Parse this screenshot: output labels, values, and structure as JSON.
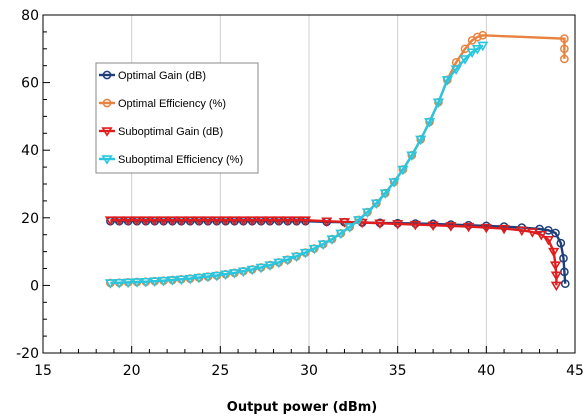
{
  "chart_data": {
    "type": "line",
    "title": "",
    "xlabel": "Output power (dBm)",
    "ylabel": "",
    "xlim": [
      15,
      45
    ],
    "ylim": [
      -20,
      80
    ],
    "x_ticks": [
      15,
      20,
      25,
      30,
      35,
      40,
      45
    ],
    "y_ticks": [
      -20,
      0,
      20,
      40,
      60,
      80
    ],
    "x_tick_labels": [
      "15",
      "20",
      "25",
      "30",
      "35",
      "40",
      "45"
    ],
    "y_tick_labels": [
      "-20",
      "0",
      "20",
      "40",
      "60",
      "80"
    ],
    "grid": "vertical",
    "legend_position": "upper-left",
    "series": [
      {
        "name": "Optimal Gain (dB)",
        "color": "#1f3f7a",
        "marker": "circle",
        "points": [
          [
            18.8,
            19.0
          ],
          [
            19.3,
            19.0
          ],
          [
            19.8,
            19.0
          ],
          [
            20.3,
            19.0
          ],
          [
            20.8,
            19.0
          ],
          [
            21.3,
            19.0
          ],
          [
            21.8,
            19.0
          ],
          [
            22.3,
            19.0
          ],
          [
            22.8,
            19.0
          ],
          [
            23.3,
            19.0
          ],
          [
            23.8,
            19.0
          ],
          [
            24.3,
            19.0
          ],
          [
            24.8,
            19.0
          ],
          [
            25.3,
            19.0
          ],
          [
            25.8,
            19.0
          ],
          [
            26.3,
            19.0
          ],
          [
            26.8,
            19.0
          ],
          [
            27.3,
            19.0
          ],
          [
            27.8,
            19.0
          ],
          [
            28.3,
            19.0
          ],
          [
            28.8,
            19.0
          ],
          [
            29.3,
            19.0
          ],
          [
            29.8,
            19.0
          ],
          [
            31.0,
            18.8
          ],
          [
            32.0,
            18.7
          ],
          [
            33.0,
            18.6
          ],
          [
            34.0,
            18.5
          ],
          [
            35.0,
            18.4
          ],
          [
            36.0,
            18.3
          ],
          [
            37.0,
            18.2
          ],
          [
            38.0,
            18.0
          ],
          [
            39.0,
            17.8
          ],
          [
            40.0,
            17.6
          ],
          [
            41.0,
            17.4
          ],
          [
            42.0,
            17.1
          ],
          [
            43.0,
            16.7
          ],
          [
            43.5,
            16.3
          ],
          [
            43.9,
            15.5
          ],
          [
            44.2,
            12.5
          ],
          [
            44.35,
            8.0
          ],
          [
            44.4,
            4.0
          ],
          [
            44.45,
            0.5
          ]
        ]
      },
      {
        "name": "Optimal Efficiency (%)",
        "color": "#e8823e",
        "marker": "circle",
        "points": [
          [
            18.8,
            0.7
          ],
          [
            19.3,
            0.8
          ],
          [
            19.8,
            0.9
          ],
          [
            20.3,
            1.0
          ],
          [
            20.8,
            1.1
          ],
          [
            21.3,
            1.25
          ],
          [
            21.8,
            1.4
          ],
          [
            22.3,
            1.6
          ],
          [
            22.8,
            1.8
          ],
          [
            23.3,
            2.0
          ],
          [
            23.8,
            2.3
          ],
          [
            24.3,
            2.6
          ],
          [
            24.8,
            2.9
          ],
          [
            25.3,
            3.3
          ],
          [
            25.8,
            3.7
          ],
          [
            26.3,
            4.2
          ],
          [
            26.8,
            4.7
          ],
          [
            27.3,
            5.3
          ],
          [
            27.8,
            6.0
          ],
          [
            28.3,
            6.8
          ],
          [
            28.8,
            7.6
          ],
          [
            29.3,
            8.6
          ],
          [
            29.8,
            9.7
          ],
          [
            30.3,
            10.9
          ],
          [
            30.8,
            12.2
          ],
          [
            31.3,
            13.7
          ],
          [
            31.8,
            15.4
          ],
          [
            32.3,
            17.3
          ],
          [
            32.8,
            19.4
          ],
          [
            33.3,
            21.7
          ],
          [
            33.8,
            24.3
          ],
          [
            34.3,
            27.3
          ],
          [
            34.8,
            30.6
          ],
          [
            35.3,
            34.3
          ],
          [
            35.8,
            38.5
          ],
          [
            36.3,
            43.2
          ],
          [
            36.8,
            48.4
          ],
          [
            37.3,
            54.2
          ],
          [
            37.8,
            60.8
          ],
          [
            38.3,
            66.0
          ],
          [
            38.8,
            70.0
          ],
          [
            39.2,
            72.5
          ],
          [
            39.5,
            73.5
          ],
          [
            39.8,
            74.0
          ],
          [
            44.4,
            73.0
          ],
          [
            44.4,
            70.0
          ],
          [
            44.4,
            67.0
          ]
        ]
      },
      {
        "name": "Suboptimal Gain (dB)",
        "color": "#e01c1c",
        "marker": "triangle-down",
        "points": [
          [
            18.8,
            19.3
          ],
          [
            19.3,
            19.3
          ],
          [
            19.8,
            19.3
          ],
          [
            20.3,
            19.3
          ],
          [
            20.8,
            19.3
          ],
          [
            21.3,
            19.3
          ],
          [
            21.8,
            19.3
          ],
          [
            22.3,
            19.3
          ],
          [
            22.8,
            19.3
          ],
          [
            23.3,
            19.3
          ],
          [
            23.8,
            19.3
          ],
          [
            24.3,
            19.3
          ],
          [
            24.8,
            19.3
          ],
          [
            25.3,
            19.3
          ],
          [
            25.8,
            19.3
          ],
          [
            26.3,
            19.3
          ],
          [
            26.8,
            19.3
          ],
          [
            27.3,
            19.3
          ],
          [
            27.8,
            19.3
          ],
          [
            28.3,
            19.3
          ],
          [
            28.8,
            19.3
          ],
          [
            29.3,
            19.3
          ],
          [
            29.8,
            19.3
          ],
          [
            31.0,
            19.0
          ],
          [
            32.0,
            18.8
          ],
          [
            33.0,
            18.6
          ],
          [
            34.0,
            18.4
          ],
          [
            35.0,
            18.2
          ],
          [
            36.0,
            18.0
          ],
          [
            37.0,
            17.8
          ],
          [
            38.0,
            17.6
          ],
          [
            39.0,
            17.4
          ],
          [
            40.0,
            17.1
          ],
          [
            41.0,
            16.8
          ],
          [
            42.0,
            16.3
          ],
          [
            42.6,
            15.8
          ],
          [
            43.1,
            15.0
          ],
          [
            43.5,
            13.5
          ],
          [
            43.8,
            10.0
          ],
          [
            43.9,
            6.0
          ],
          [
            43.95,
            3.0
          ],
          [
            43.95,
            0.0
          ]
        ]
      },
      {
        "name": "Suboptimal Efficiency (%)",
        "color": "#28c6df",
        "marker": "triangle-down",
        "points": [
          [
            18.8,
            0.7
          ],
          [
            19.3,
            0.8
          ],
          [
            19.8,
            0.9
          ],
          [
            20.3,
            1.0
          ],
          [
            20.8,
            1.1
          ],
          [
            21.3,
            1.25
          ],
          [
            21.8,
            1.4
          ],
          [
            22.3,
            1.6
          ],
          [
            22.8,
            1.8
          ],
          [
            23.3,
            2.0
          ],
          [
            23.8,
            2.3
          ],
          [
            24.3,
            2.6
          ],
          [
            24.8,
            2.9
          ],
          [
            25.3,
            3.3
          ],
          [
            25.8,
            3.7
          ],
          [
            26.3,
            4.2
          ],
          [
            26.8,
            4.7
          ],
          [
            27.3,
            5.3
          ],
          [
            27.8,
            6.0
          ],
          [
            28.3,
            6.8
          ],
          [
            28.8,
            7.6
          ],
          [
            29.3,
            8.6
          ],
          [
            29.8,
            9.7
          ],
          [
            30.3,
            10.9
          ],
          [
            30.8,
            12.2
          ],
          [
            31.3,
            13.7
          ],
          [
            31.8,
            15.4
          ],
          [
            32.3,
            17.3
          ],
          [
            32.8,
            19.4
          ],
          [
            33.3,
            21.7
          ],
          [
            33.8,
            24.3
          ],
          [
            34.3,
            27.3
          ],
          [
            34.8,
            30.6
          ],
          [
            35.3,
            34.3
          ],
          [
            35.8,
            38.5
          ],
          [
            36.3,
            43.2
          ],
          [
            36.8,
            48.4
          ],
          [
            37.3,
            54.2
          ],
          [
            37.8,
            60.8
          ],
          [
            38.3,
            64.0
          ],
          [
            38.8,
            67.0
          ],
          [
            39.2,
            69.0
          ],
          [
            39.5,
            70.0
          ],
          [
            39.8,
            71.0
          ]
        ]
      }
    ]
  }
}
